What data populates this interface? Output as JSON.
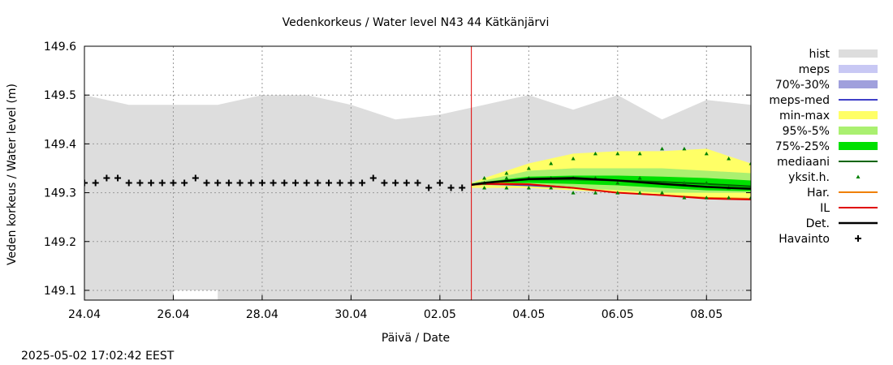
{
  "chart_data": {
    "type": "line",
    "title": "Vedenkorkeus / Water level   N43 44 Kätkänjärvi",
    "xlabel": "Päivä / Date",
    "ylabel": "Veden korkeus / Water level (m)",
    "timestamp": "2025-05-02 17:02:42 EEST",
    "xlim": [
      "2025-04-24",
      "2025-05-09"
    ],
    "ylim": [
      149.08,
      149.6
    ],
    "y_ticks": [
      149.1,
      149.2,
      149.3,
      149.4,
      149.5,
      149.6
    ],
    "x_ticks": [
      "2025-04-24",
      "2025-04-26",
      "2025-04-28",
      "2025-04-30",
      "2025-05-02",
      "2025-05-04",
      "2025-05-06",
      "2025-05-08"
    ],
    "x_tick_labels": [
      "24.04",
      "26.04",
      "28.04",
      "30.04",
      "02.05",
      "04.05",
      "06.05",
      "08.05"
    ],
    "grid": true,
    "legend_position": "right",
    "current_time": "2025-05-02T17:00",
    "colors": {
      "hist": "#dddddd",
      "meps": "#c8c8f4",
      "p70_30": "#a0a0dc",
      "meps_med": "#4040c8",
      "minmax": "#ffff66",
      "p95_5": "#aaf070",
      "p75_25": "#00e000",
      "mediaani": "#006400",
      "yksit": "#008000",
      "har": "#f08000",
      "il": "#e00000",
      "det": "#000000",
      "havainto": "#000000",
      "now_line": "#e00000"
    },
    "legend": [
      {
        "label": "hist",
        "key": "hist",
        "style": "box"
      },
      {
        "label": "meps",
        "key": "meps",
        "style": "box"
      },
      {
        "label": "70%-30%",
        "key": "p70_30",
        "style": "box"
      },
      {
        "label": "meps-med",
        "key": "meps_med",
        "style": "line"
      },
      {
        "label": "min-max",
        "key": "minmax",
        "style": "box"
      },
      {
        "label": "95%-5%",
        "key": "p95_5",
        "style": "box"
      },
      {
        "label": "75%-25%",
        "key": "p75_25",
        "style": "box"
      },
      {
        "label": "mediaani",
        "key": "mediaani",
        "style": "line"
      },
      {
        "label": "yksit.h.",
        "key": "yksit",
        "style": "point"
      },
      {
        "label": "Har.",
        "key": "har",
        "style": "line"
      },
      {
        "label": "IL",
        "key": "il",
        "style": "line"
      },
      {
        "label": "Det.",
        "key": "det",
        "style": "thickline"
      },
      {
        "label": "Havainto",
        "key": "havainto",
        "style": "plus"
      }
    ],
    "hist_upper": {
      "x": [
        "2025-04-24",
        "2025-04-25",
        "2025-04-26",
        "2025-04-27",
        "2025-04-28",
        "2025-04-29",
        "2025-04-30",
        "2025-05-01",
        "2025-05-02",
        "2025-05-03",
        "2025-05-04",
        "2025-05-05",
        "2025-05-06",
        "2025-05-07",
        "2025-05-08",
        "2025-05-09"
      ],
      "y": [
        149.5,
        149.48,
        149.48,
        149.48,
        149.5,
        149.5,
        149.48,
        149.45,
        149.46,
        149.48,
        149.5,
        149.47,
        149.5,
        149.45,
        149.49,
        149.48
      ]
    },
    "hist_lower": {
      "x": [
        "2025-04-24",
        "2025-04-26",
        "2025-04-26",
        "2025-04-27",
        "2025-04-27",
        "2025-05-09"
      ],
      "y": [
        149.08,
        149.08,
        149.1,
        149.1,
        149.08,
        149.08
      ]
    },
    "havainto": {
      "x": [
        "2025-04-24T00:00",
        "2025-04-24T06:00",
        "2025-04-24T12:00",
        "2025-04-24T18:00",
        "2025-04-25T00:00",
        "2025-04-25T06:00",
        "2025-04-25T12:00",
        "2025-04-25T18:00",
        "2025-04-26T00:00",
        "2025-04-26T06:00",
        "2025-04-26T12:00",
        "2025-04-26T18:00",
        "2025-04-27T00:00",
        "2025-04-27T06:00",
        "2025-04-27T12:00",
        "2025-04-27T18:00",
        "2025-04-28T00:00",
        "2025-04-28T06:00",
        "2025-04-28T12:00",
        "2025-04-28T18:00",
        "2025-04-29T00:00",
        "2025-04-29T06:00",
        "2025-04-29T12:00",
        "2025-04-29T18:00",
        "2025-04-30T00:00",
        "2025-04-30T06:00",
        "2025-04-30T12:00",
        "2025-04-30T18:00",
        "2025-05-01T00:00",
        "2025-05-01T06:00",
        "2025-05-01T12:00",
        "2025-05-01T18:00",
        "2025-05-02T00:00",
        "2025-05-02T06:00",
        "2025-05-02T12:00"
      ],
      "y": [
        149.32,
        149.32,
        149.33,
        149.33,
        149.32,
        149.32,
        149.32,
        149.32,
        149.32,
        149.32,
        149.33,
        149.32,
        149.32,
        149.32,
        149.32,
        149.32,
        149.32,
        149.32,
        149.32,
        149.32,
        149.32,
        149.32,
        149.32,
        149.32,
        149.32,
        149.32,
        149.33,
        149.32,
        149.32,
        149.32,
        149.32,
        149.31,
        149.32,
        149.31,
        149.31
      ]
    },
    "forecast_x": [
      "2025-05-02T17:00",
      "2025-05-03",
      "2025-05-04",
      "2025-05-05",
      "2025-05-06",
      "2025-05-07",
      "2025-05-08",
      "2025-05-09"
    ],
    "minmax_upper": [
      149.32,
      149.33,
      149.36,
      149.38,
      149.385,
      149.385,
      149.39,
      149.36
    ],
    "minmax_lower": [
      149.31,
      149.31,
      149.31,
      149.305,
      149.3,
      149.295,
      149.29,
      149.29
    ],
    "p95_5_upper": [
      149.32,
      149.325,
      149.345,
      149.35,
      149.35,
      149.35,
      149.345,
      149.34
    ],
    "p95_5_lower": [
      149.315,
      149.315,
      149.315,
      149.31,
      149.305,
      149.3,
      149.3,
      149.3
    ],
    "p75_25_upper": [
      149.318,
      149.322,
      149.333,
      149.335,
      149.335,
      149.333,
      149.33,
      149.325
    ],
    "p75_25_lower": [
      149.315,
      149.317,
      149.32,
      149.318,
      149.315,
      149.31,
      149.305,
      149.303
    ],
    "mediaani": [
      149.316,
      149.32,
      149.327,
      149.327,
      149.325,
      149.322,
      149.318,
      149.313
    ],
    "det": [
      149.316,
      149.32,
      149.328,
      149.33,
      149.325,
      149.318,
      149.312,
      149.308
    ],
    "meps_med": {
      "x": [
        "2025-05-02T17:00",
        "2025-05-03",
        "2025-05-04",
        "2025-05-05"
      ],
      "y": [
        149.316,
        149.318,
        149.315,
        149.31
      ]
    },
    "har": [
      149.316,
      149.32,
      149.318,
      149.31,
      149.3,
      149.295,
      149.29,
      149.288
    ],
    "il": [
      149.316,
      149.318,
      149.317,
      149.31,
      149.3,
      149.295,
      149.288,
      149.286
    ],
    "yksit_h": {
      "x": [
        "2025-05-03",
        "2025-05-03T12:00",
        "2025-05-04",
        "2025-05-04T12:00",
        "2025-05-05",
        "2025-05-05T12:00",
        "2025-05-06",
        "2025-05-06T12:00",
        "2025-05-07",
        "2025-05-07T12:00",
        "2025-05-08",
        "2025-05-08T12:00",
        "2025-05-09",
        "2025-05-03",
        "2025-05-03T12:00",
        "2025-05-04",
        "2025-05-04T12:00",
        "2025-05-05",
        "2025-05-05T12:00",
        "2025-05-06",
        "2025-05-06T12:00",
        "2025-05-07",
        "2025-05-07T12:00",
        "2025-05-08",
        "2025-05-08T12:00",
        "2025-05-09",
        "2025-05-03",
        "2025-05-03T12:00",
        "2025-05-04",
        "2025-05-04T12:00",
        "2025-05-05",
        "2025-05-05T12:00",
        "2025-05-06",
        "2025-05-06T12:00",
        "2025-05-07",
        "2025-05-07T12:00",
        "2025-05-08",
        "2025-05-08T12:00",
        "2025-05-09"
      ],
      "y": [
        149.33,
        149.34,
        149.35,
        149.36,
        149.37,
        149.38,
        149.38,
        149.38,
        149.39,
        149.39,
        149.38,
        149.37,
        149.36,
        149.32,
        149.33,
        149.33,
        149.33,
        149.33,
        149.33,
        149.32,
        149.33,
        149.32,
        149.32,
        149.32,
        149.31,
        149.31,
        149.31,
        149.31,
        149.31,
        149.31,
        149.3,
        149.3,
        149.3,
        149.3,
        149.3,
        149.29,
        149.29,
        149.29,
        149.29
      ]
    }
  }
}
